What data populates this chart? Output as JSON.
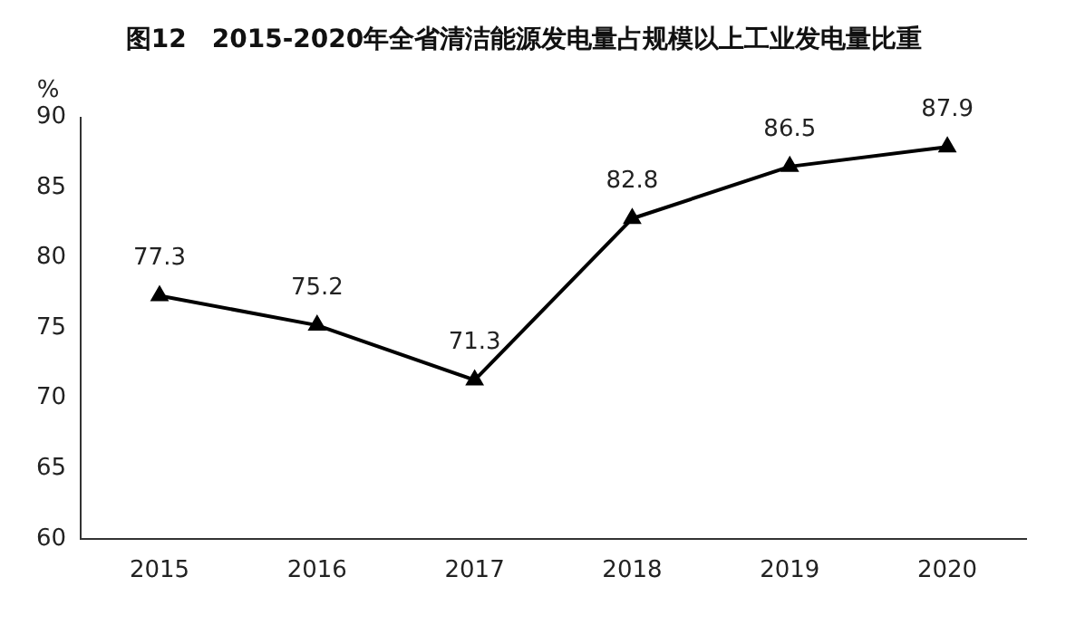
{
  "chart_data": {
    "type": "line",
    "title": "图12　2015-2020年全省清洁能源发电量占规模以上工业发电量比重",
    "ylabel": "%",
    "categories": [
      "2015",
      "2016",
      "2017",
      "2018",
      "2019",
      "2020"
    ],
    "series": [
      {
        "color": "#000000",
        "values": [
          77.3,
          75.2,
          71.3,
          82.8,
          86.5,
          87.9
        ]
      }
    ],
    "ylim": [
      60,
      90
    ],
    "yticks": [
      60,
      65,
      70,
      75,
      80,
      85,
      90
    ],
    "grid": false,
    "legend": false,
    "marker": "triangle",
    "line_style": "solid",
    "data_labels": true
  }
}
